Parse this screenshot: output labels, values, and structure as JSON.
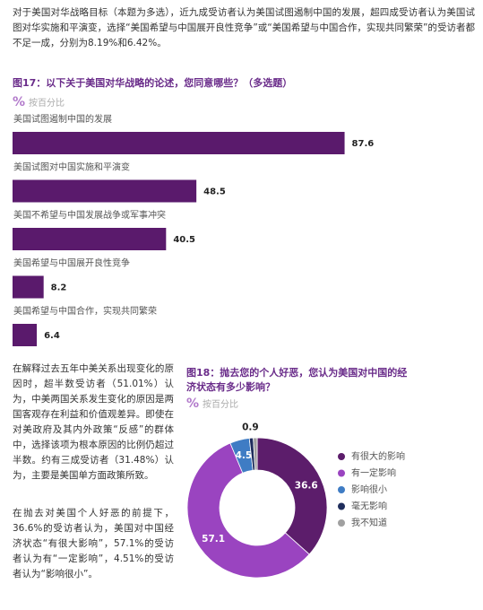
{
  "text": {
    "intro": "对于美国对华战略目标（本题为多选），近九成受访者认为美国试图遏制中国的发展，超四成受访者认为美国试图对华实施和平演变，选择“美国希望与中国展开良性竞争”或“美国希望与中国合作，实现共同繁荣”的受访者都不足一成，分别为8.19%和6.42%。",
    "para2": "在解释过去五年中美关系出现变化的原因时，超半数受访者（51.01%）认为，中美两国关系发生变化的原因是两国客观存在利益和价值观差异。即使在对美政府及其内外政策“反感”的群体中，选择该项为根本原因的比例仍超过半数。约有三成受访者（31.48%）认为，主要是美国单方面政策所致。",
    "para3": "在抛去对美国个人好恶的前提下，36.6%的受访者认为，美国对中国经济状态“有很大影响”，57.1%的受访者认为有“一定影响”，4.51%的受访者认为“影响很小”。"
  },
  "chart_data": [
    {
      "type": "bar",
      "title": "图17：以下关于美国对华战略的论述，您同意哪些？（多选题）",
      "unit_icon": "%",
      "unit_note": "按百分比",
      "categories": [
        "美国试图遏制中国的发展",
        "美国试图对中国实施和平演变",
        "美国不希望与中国发展战争或军事冲突",
        "美国希望与中国展开良性竞争",
        "美国希望与中国合作，实现共同繁荣"
      ],
      "values": [
        87.6,
        48.5,
        40.5,
        8.2,
        6.4
      ],
      "color": "#5a1a6c"
    },
    {
      "type": "donut",
      "title": "图18：抛去您的个人好恶，您认为美国对中国的经济状态有多少影响？",
      "unit_icon": "%",
      "unit_note": "按百分比",
      "categories": [
        "有很大的影响",
        "有一定影响",
        "影响很小",
        "毫无影响",
        "我不知道"
      ],
      "values": [
        36.6,
        57.1,
        4.5,
        0.9,
        0.9
      ],
      "value_labels": [
        "36.6",
        "57.1",
        "4.5",
        "0.9",
        null
      ],
      "colors": [
        "#5c1d6b",
        "#9a44c0",
        "#3f7cc4",
        "#1f2d5c",
        "#a0a0a0"
      ]
    }
  ]
}
